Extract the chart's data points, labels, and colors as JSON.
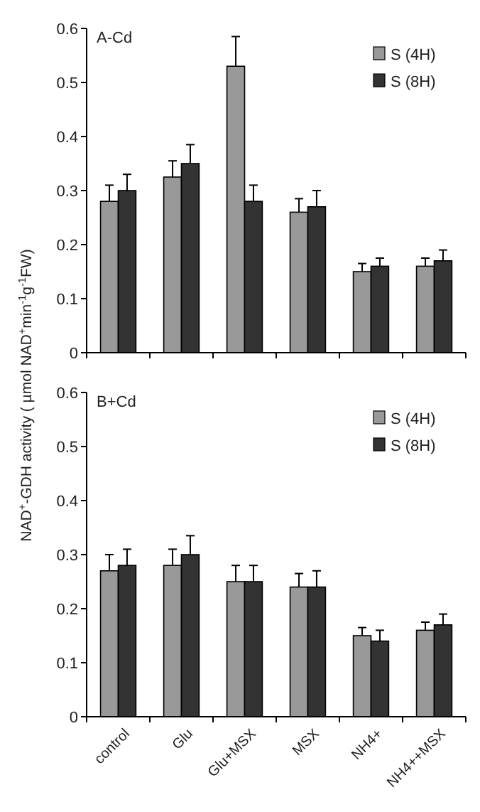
{
  "chart_data": [
    {
      "type": "bar",
      "title": "A-Cd",
      "ylabel": "NAD$^{+}$-GDH activity ( µmol NAD$^{+}$min$^{-1}$g$^{-1}$FW)",
      "categories": [
        null,
        null,
        null,
        null,
        null,
        null
      ],
      "ylim": [
        0,
        0.6
      ],
      "yticks": [
        0,
        0.1,
        0.2,
        0.3,
        0.4,
        0.5,
        0.6
      ],
      "grid": false,
      "legend": "top right",
      "series": [
        {
          "name": "S (4H)",
          "color": "#999999",
          "values": [
            0.28,
            0.325,
            0.53,
            0.26,
            0.15,
            0.16
          ],
          "errors": [
            0.03,
            0.03,
            0.055,
            0.025,
            0.015,
            0.015
          ]
        },
        {
          "name": "S (8H)",
          "color": "#333333",
          "values": [
            0.3,
            0.35,
            0.28,
            0.27,
            0.16,
            0.17
          ],
          "errors": [
            0.03,
            0.035,
            0.03,
            0.03,
            0.015,
            0.02
          ]
        }
      ]
    },
    {
      "type": "bar",
      "title": "B+Cd",
      "categories": [
        "control",
        "Glu",
        "Glu+MSX",
        "MSX",
        "NH4+",
        "NH4++MSX"
      ],
      "ylim": [
        0,
        0.6
      ],
      "yticks": [
        0,
        0.1,
        0.2,
        0.3,
        0.4,
        0.5,
        0.6
      ],
      "grid": false,
      "legend": "top right",
      "series": [
        {
          "name": "S (4H)",
          "color": "#999999",
          "values": [
            0.27,
            0.28,
            0.25,
            0.24,
            0.15,
            0.16
          ],
          "errors": [
            0.03,
            0.03,
            0.03,
            0.025,
            0.015,
            0.015
          ]
        },
        {
          "name": "S (8H)",
          "color": "#333333",
          "values": [
            0.28,
            0.3,
            0.25,
            0.24,
            0.14,
            0.17
          ],
          "errors": [
            0.03,
            0.035,
            0.03,
            0.03,
            0.02,
            0.02
          ]
        }
      ]
    }
  ]
}
